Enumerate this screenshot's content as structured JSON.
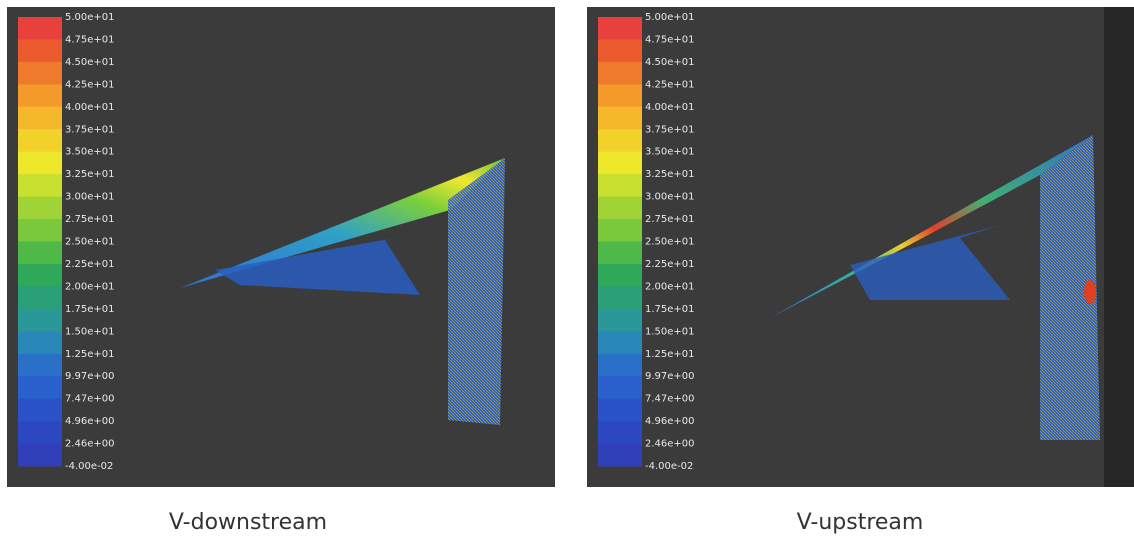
{
  "panels": [
    {
      "caption": "V-downstream",
      "legend": [
        "5.00e+01",
        "4.75e+01",
        "4.50e+01",
        "4.25e+01",
        "4.00e+01",
        "3.75e+01",
        "3.50e+01",
        "3.25e+01",
        "3.00e+01",
        "2.75e+01",
        "2.50e+01",
        "2.25e+01",
        "2.00e+01",
        "1.75e+01",
        "1.50e+01",
        "1.25e+01",
        "9.97e+00",
        "7.47e+00",
        "4.96e+00",
        "2.46e+00",
        "-4.00e-02"
      ]
    },
    {
      "caption": "V-upstream",
      "legend": [
        "5.00e+01",
        "4.75e+01",
        "4.50e+01",
        "4.25e+01",
        "4.00e+01",
        "3.75e+01",
        "3.50e+01",
        "3.25e+01",
        "3.00e+01",
        "2.75e+01",
        "2.50e+01",
        "2.25e+01",
        "2.00e+01",
        "1.75e+01",
        "1.50e+01",
        "1.25e+01",
        "9.97e+00",
        "7.47e+00",
        "4.96e+00",
        "2.46e+00",
        "-4.00e-02"
      ]
    }
  ]
}
